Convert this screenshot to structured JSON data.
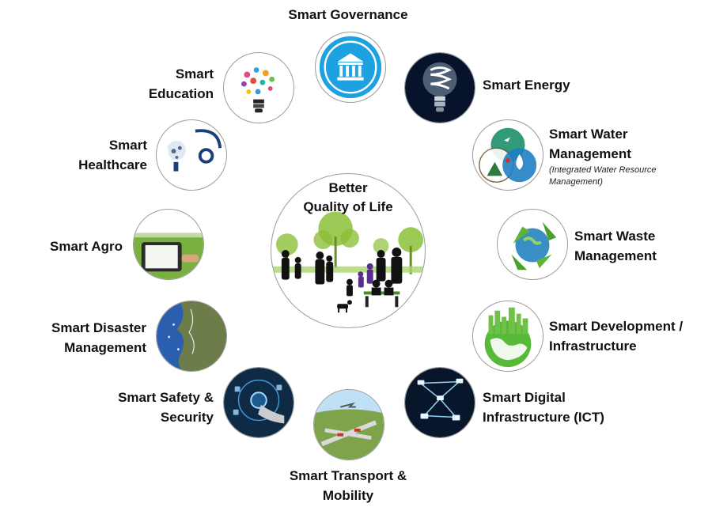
{
  "center": {
    "line1": "Better",
    "line2": "Quality of Life"
  },
  "items": [
    {
      "label1": "Smart Governance",
      "label2": "",
      "icon": "bank-building-icon",
      "color": "#1da1e0"
    },
    {
      "label1": "Smart Energy",
      "label2": "",
      "icon": "light-bulb-icon",
      "color": "#0a1c3a"
    },
    {
      "label1": "Smart Water",
      "label2": "Management",
      "sub1": "(Integrated Water Resource",
      "sub2": "Management)",
      "icon": "water-drop-icon",
      "color": "#1b8f6a"
    },
    {
      "label1": "Smart Waste",
      "label2": "Management",
      "icon": "recycle-icon",
      "color": "#5db33a"
    },
    {
      "label1": "Smart Development /",
      "label2": "Infrastructure",
      "icon": "green-city-globe-icon",
      "color": "#3f9b2a"
    },
    {
      "label1": "Smart Digital",
      "label2": "Infrastructure (ICT)",
      "icon": "network-nodes-icon",
      "color": "#0b1a33"
    },
    {
      "label1": "Smart Transport &",
      "label2": "Mobility",
      "icon": "transport-city-icon",
      "color": "#6a8d3a"
    },
    {
      "label1": "Smart Safety &",
      "label2": "Security",
      "icon": "security-touch-icon",
      "color": "#12314f"
    },
    {
      "label1": "Smart Disaster",
      "label2": "Management",
      "icon": "satellite-map-icon",
      "color": "#2a5fb0"
    },
    {
      "label1": "Smart Agro",
      "label2": "",
      "icon": "tablet-field-icon",
      "color": "#6fae3c"
    },
    {
      "label1": "Smart",
      "label2": "Healthcare",
      "icon": "stethoscope-icon",
      "color": "#1c3f7a"
    },
    {
      "label1": "Smart",
      "label2": "Education",
      "icon": "idea-bulb-icon",
      "color": "#e04a8a"
    }
  ]
}
